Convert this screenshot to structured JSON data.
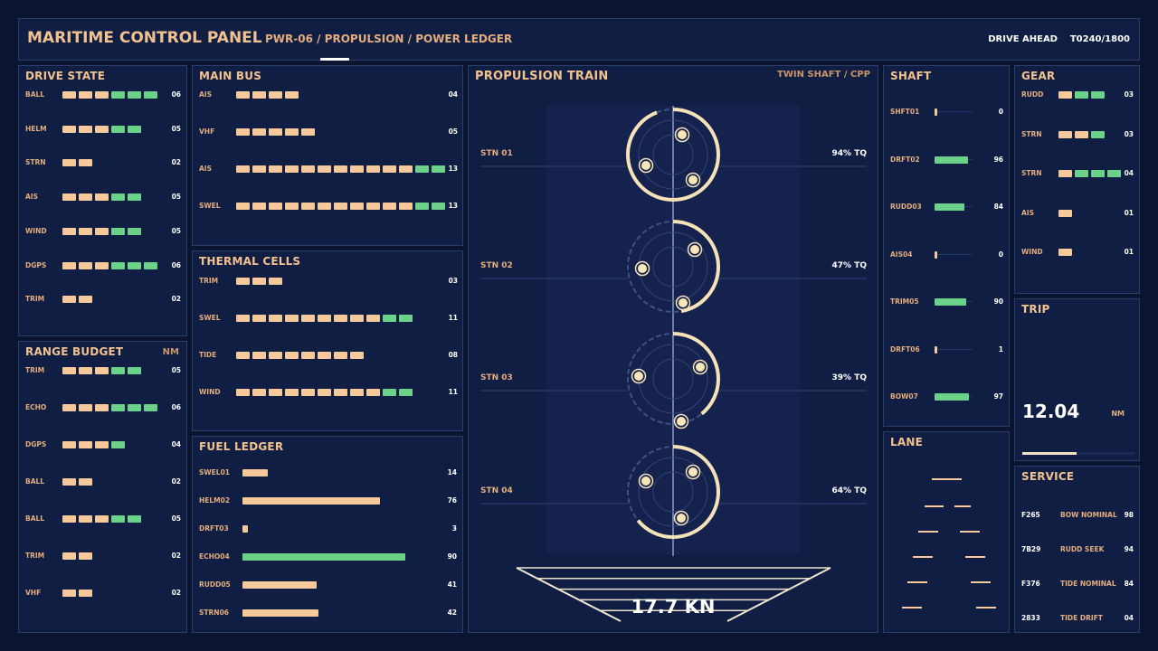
{
  "header": {
    "title": "MARITIME CONTROL PANEL",
    "breadcrumb": "PWR-06 / PROPULSION / POWER LEDGER",
    "status": "DRIVE AHEAD",
    "counter": "T0240/1800"
  },
  "drive_state": {
    "title": "DRIVE STATE",
    "rows": [
      {
        "label": "BALL",
        "value": "06",
        "tan": 3,
        "green": 3
      },
      {
        "label": "HELM",
        "value": "05",
        "tan": 3,
        "green": 2
      },
      {
        "label": "STRN",
        "value": "02",
        "tan": 2,
        "green": 0
      },
      {
        "label": "AIS",
        "value": "05",
        "tan": 3,
        "green": 2
      },
      {
        "label": "WIND",
        "value": "05",
        "tan": 3,
        "green": 2
      },
      {
        "label": "DGPS",
        "value": "06",
        "tan": 3,
        "green": 3
      },
      {
        "label": "TRIM",
        "value": "02",
        "tan": 2,
        "green": 0
      }
    ]
  },
  "range_budget": {
    "title": "RANGE BUDGET",
    "unit": "NM",
    "rows": [
      {
        "label": "TRIM",
        "value": "05",
        "tan": 3,
        "green": 2
      },
      {
        "label": "ECHO",
        "value": "06",
        "tan": 3,
        "green": 3
      },
      {
        "label": "DGPS",
        "value": "04",
        "tan": 3,
        "green": 1
      },
      {
        "label": "BALL",
        "value": "02",
        "tan": 2,
        "green": 0
      },
      {
        "label": "BALL",
        "value": "05",
        "tan": 3,
        "green": 2
      },
      {
        "label": "TRIM",
        "value": "02",
        "tan": 2,
        "green": 0
      },
      {
        "label": "VHF",
        "value": "02",
        "tan": 2,
        "green": 0
      }
    ]
  },
  "main_bus": {
    "title": "MAIN BUS",
    "rows": [
      {
        "label": "AIS",
        "value": "04",
        "tan": 4,
        "green": 0
      },
      {
        "label": "VHF",
        "value": "05",
        "tan": 5,
        "green": 0
      },
      {
        "label": "AIS",
        "value": "13",
        "tan": 11,
        "green": 2
      },
      {
        "label": "SWEL",
        "value": "13",
        "tan": 11,
        "green": 2
      }
    ]
  },
  "thermal_cells": {
    "title": "THERMAL CELLS",
    "rows": [
      {
        "label": "TRIM",
        "value": "03",
        "tan": 3,
        "green": 0
      },
      {
        "label": "SWEL",
        "value": "11",
        "tan": 9,
        "green": 2
      },
      {
        "label": "TIDE",
        "value": "08",
        "tan": 8,
        "green": 0
      },
      {
        "label": "WIND",
        "value": "11",
        "tan": 9,
        "green": 2
      }
    ]
  },
  "fuel_ledger": {
    "title": "FUEL LEDGER",
    "rows": [
      {
        "label": "SWEL01",
        "value": "14",
        "level": 14,
        "color": "#f5c99a"
      },
      {
        "label": "HELM02",
        "value": "76",
        "level": 76,
        "color": "#f5c99a"
      },
      {
        "label": "DRFT03",
        "value": "3",
        "level": 3,
        "color": "#f5c99a"
      },
      {
        "label": "ECHO04",
        "value": "90",
        "level": 90,
        "color": "#6cd289"
      },
      {
        "label": "RUDD05",
        "value": "41",
        "level": 41,
        "color": "#f5c99a"
      },
      {
        "label": "STRN06",
        "value": "42",
        "level": 42,
        "color": "#f5c99a"
      }
    ]
  },
  "propulsion": {
    "title": "PROPULSION TRAIN",
    "subtitle": "TWIN SHAFT / CPP",
    "stations": [
      {
        "label": "STN 01",
        "readout": "94% TQ",
        "torque": 94
      },
      {
        "label": "STN 02",
        "readout": "47% TQ",
        "torque": 47
      },
      {
        "label": "STN 03",
        "readout": "39% TQ",
        "torque": 39
      },
      {
        "label": "STN 04",
        "readout": "64% TQ",
        "torque": 64
      }
    ],
    "speed": "17.7 KN"
  },
  "shaft": {
    "title": "SHAFT",
    "rows": [
      {
        "label": "SHFT01",
        "value": "0",
        "level": 0,
        "color": "#f5c99a"
      },
      {
        "label": "DRFT02",
        "value": "96",
        "level": 96,
        "color": "#6cd289"
      },
      {
        "label": "RUDD03",
        "value": "84",
        "level": 84,
        "color": "#6cd289"
      },
      {
        "label": "AIS04",
        "value": "0",
        "level": 0,
        "color": "#f5c99a"
      },
      {
        "label": "TRIM05",
        "value": "90",
        "level": 90,
        "color": "#6cd289"
      },
      {
        "label": "DRFT06",
        "value": "1",
        "level": 1,
        "color": "#f5c99a"
      },
      {
        "label": "BOW07",
        "value": "97",
        "level": 97,
        "color": "#6cd289"
      }
    ]
  },
  "lane": {
    "title": "LANE"
  },
  "gear": {
    "title": "GEAR",
    "rows": [
      {
        "label": "RUDD",
        "value": "03",
        "tan": 1,
        "green": 2
      },
      {
        "label": "STRN",
        "value": "03",
        "tan": 2,
        "green": 1
      },
      {
        "label": "STRN",
        "value": "04",
        "tan": 1,
        "green": 3
      },
      {
        "label": "AIS",
        "value": "01",
        "tan": 1,
        "green": 0
      },
      {
        "label": "WIND",
        "value": "01",
        "tan": 1,
        "green": 0
      }
    ]
  },
  "trip": {
    "title": "TRIP",
    "value": "12.04",
    "unit": "NM",
    "progress": 0.48
  },
  "service": {
    "title": "SERVICE",
    "rows": [
      {
        "code": "F265",
        "desc": "BOW NOMINAL",
        "value": "98"
      },
      {
        "code": "7B29",
        "desc": "RUDD SEEK",
        "value": "94"
      },
      {
        "code": "F376",
        "desc": "TIDE NOMINAL",
        "value": "84"
      },
      {
        "code": "2833",
        "desc": "TIDE DRIFT",
        "value": "04"
      }
    ]
  },
  "colors": {
    "accent": "#f2c28e",
    "tan": "#f5c99a",
    "green": "#6cd289",
    "panel": "#111e44",
    "background": "#0c1530"
  }
}
